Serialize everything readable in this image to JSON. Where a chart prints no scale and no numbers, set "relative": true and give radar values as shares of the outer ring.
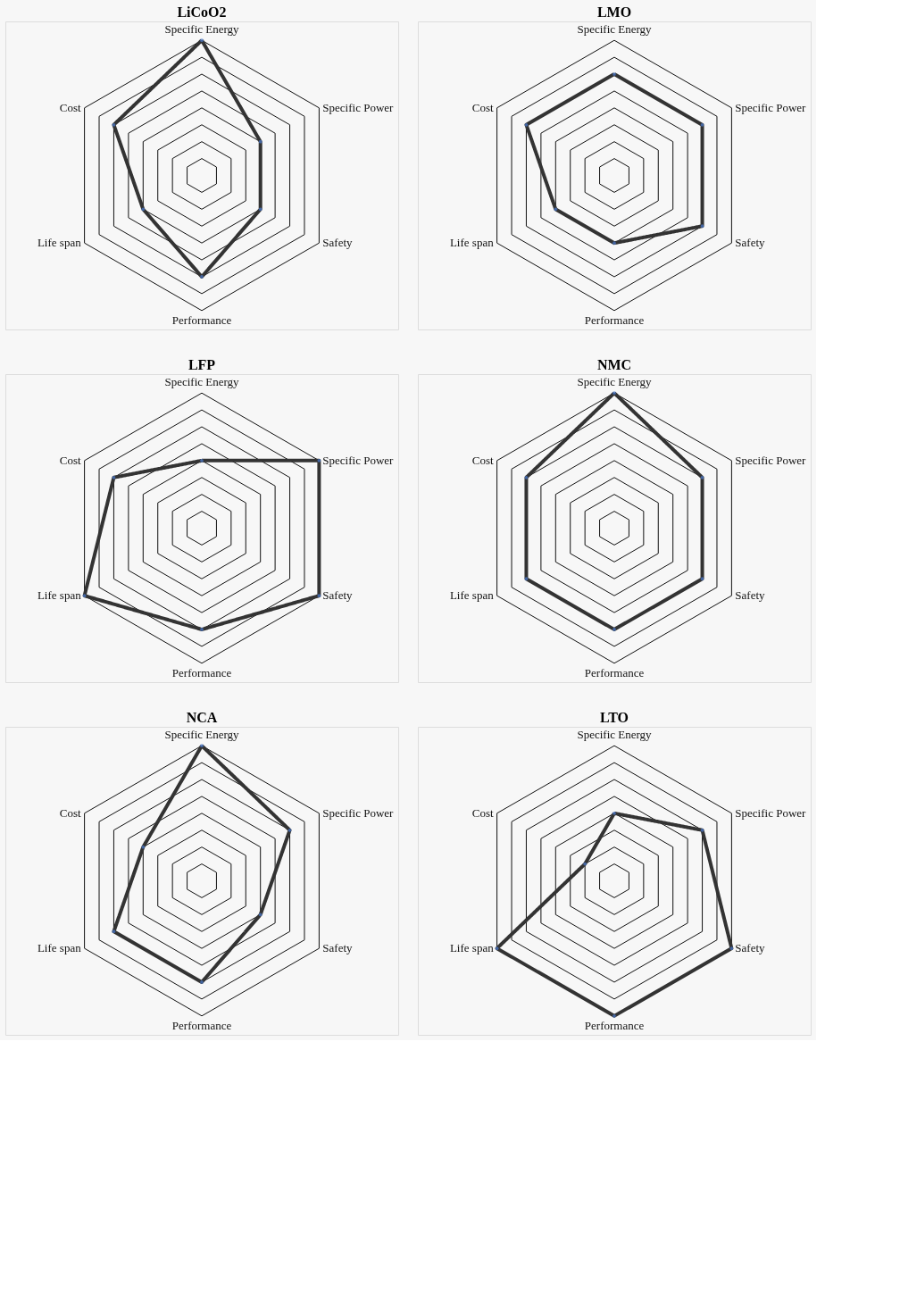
{
  "chart_data": [
    {
      "type": "radar",
      "title": "LiCoO2",
      "relative": true,
      "grid": true,
      "marker": "circle",
      "categories": [
        "Specific Energy",
        "Specific Power",
        "Safety",
        "Performance",
        "Life span",
        "Cost"
      ],
      "series": [
        {
          "color": "#333333",
          "values": [
            1,
            0.5,
            0.5,
            0.75,
            0.5,
            0.75
          ]
        }
      ]
    },
    {
      "type": "radar",
      "title": "LMO",
      "relative": true,
      "grid": true,
      "marker": "circle",
      "categories": [
        "Specific Energy",
        "Specific Power",
        "Safety",
        "Performance",
        "Life span",
        "Cost"
      ],
      "series": [
        {
          "color": "#333333",
          "values": [
            0.75,
            0.75,
            0.75,
            0.5,
            0.5,
            0.75
          ]
        }
      ]
    },
    {
      "type": "radar",
      "title": "LFP",
      "relative": true,
      "grid": true,
      "marker": "circle",
      "categories": [
        "Specific Energy",
        "Specific Power",
        "Safety",
        "Performance",
        "Life span",
        "Cost"
      ],
      "series": [
        {
          "color": "#333333",
          "values": [
            0.5,
            1,
            1,
            0.75,
            1,
            0.75
          ]
        }
      ]
    },
    {
      "type": "radar",
      "title": "NMC",
      "relative": true,
      "grid": true,
      "marker": "circle",
      "categories": [
        "Specific Energy",
        "Specific Power",
        "Safety",
        "Performance",
        "Life span",
        "Cost"
      ],
      "series": [
        {
          "color": "#333333",
          "values": [
            1,
            0.75,
            0.75,
            0.75,
            0.75,
            0.75
          ]
        }
      ]
    },
    {
      "type": "radar",
      "title": "NCA",
      "relative": true,
      "grid": true,
      "marker": "circle",
      "categories": [
        "Specific Energy",
        "Specific Power",
        "Safety",
        "Performance",
        "Life span",
        "Cost"
      ],
      "series": [
        {
          "color": "#333333",
          "values": [
            1,
            0.75,
            0.5,
            0.75,
            0.75,
            0.5
          ]
        }
      ]
    },
    {
      "type": "radar",
      "title": "LTO",
      "relative": true,
      "grid": true,
      "marker": "circle",
      "categories": [
        "Specific Energy",
        "Specific Power",
        "Safety",
        "Performance",
        "Life span",
        "Cost"
      ],
      "series": [
        {
          "color": "#333333",
          "values": [
            0.5,
            0.75,
            1,
            1,
            1,
            0.25
          ]
        }
      ]
    }
  ]
}
